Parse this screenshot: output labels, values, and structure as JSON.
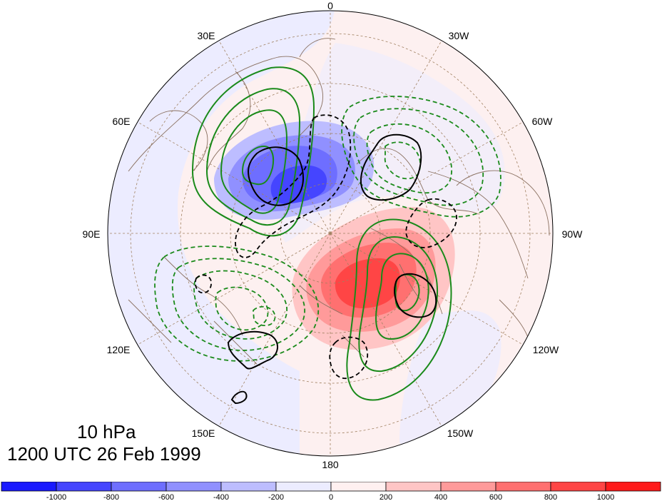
{
  "map": {
    "projection": "north polar stereographic",
    "longitude_labels": {
      "top": "0",
      "upper_left": "30E",
      "upper_right": "30W",
      "left_upper": "60E",
      "right_upper": "60W",
      "left": "90E",
      "right": "90W",
      "left_lower": "120E",
      "right_lower": "120W",
      "lower_left": "150E",
      "lower_right": "150W",
      "bottom": "180"
    }
  },
  "annotation": {
    "level": "10 hPa",
    "time": "1200 UTC 26 Feb 1999"
  },
  "colorbar": {
    "colors": [
      "#1a1aff",
      "#4545ff",
      "#6e6eff",
      "#9090ff",
      "#bdbdff",
      "#ececff",
      "#fff0f0",
      "#ffc5c5",
      "#ff9a9a",
      "#ff7070",
      "#ff4545",
      "#ff1a1a"
    ],
    "ticks": [
      "-1000",
      "-800",
      "-600",
      "-400",
      "-200",
      "0",
      "200",
      "400",
      "600",
      "800",
      "1000"
    ]
  },
  "colors": {
    "negative_fill": "#4545ff",
    "positive_fill": "#ff4545",
    "green_contour": "#1a8a1a",
    "black_contour": "#000000",
    "coastline": "#8a7060",
    "grid": "#a08060"
  }
}
